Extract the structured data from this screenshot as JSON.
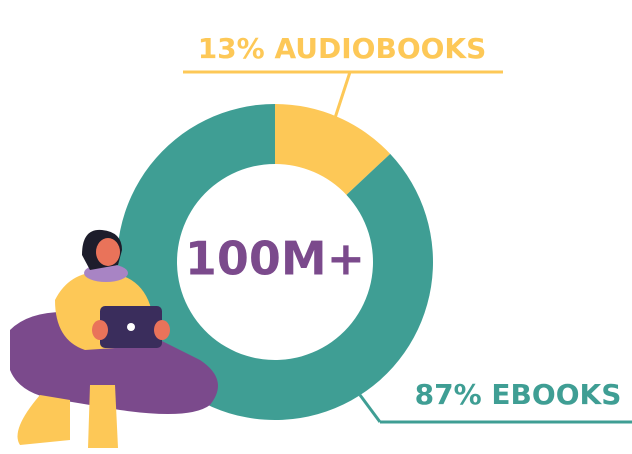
{
  "chart_data": {
    "type": "donut",
    "categories": [
      "AUDIOBOOKS",
      "EBOOKS"
    ],
    "values": [
      13,
      87
    ],
    "value_labels": [
      "13%",
      "87%"
    ],
    "colors": [
      "#fdc857",
      "#3f9e94"
    ],
    "center_label": "100M+"
  }
}
